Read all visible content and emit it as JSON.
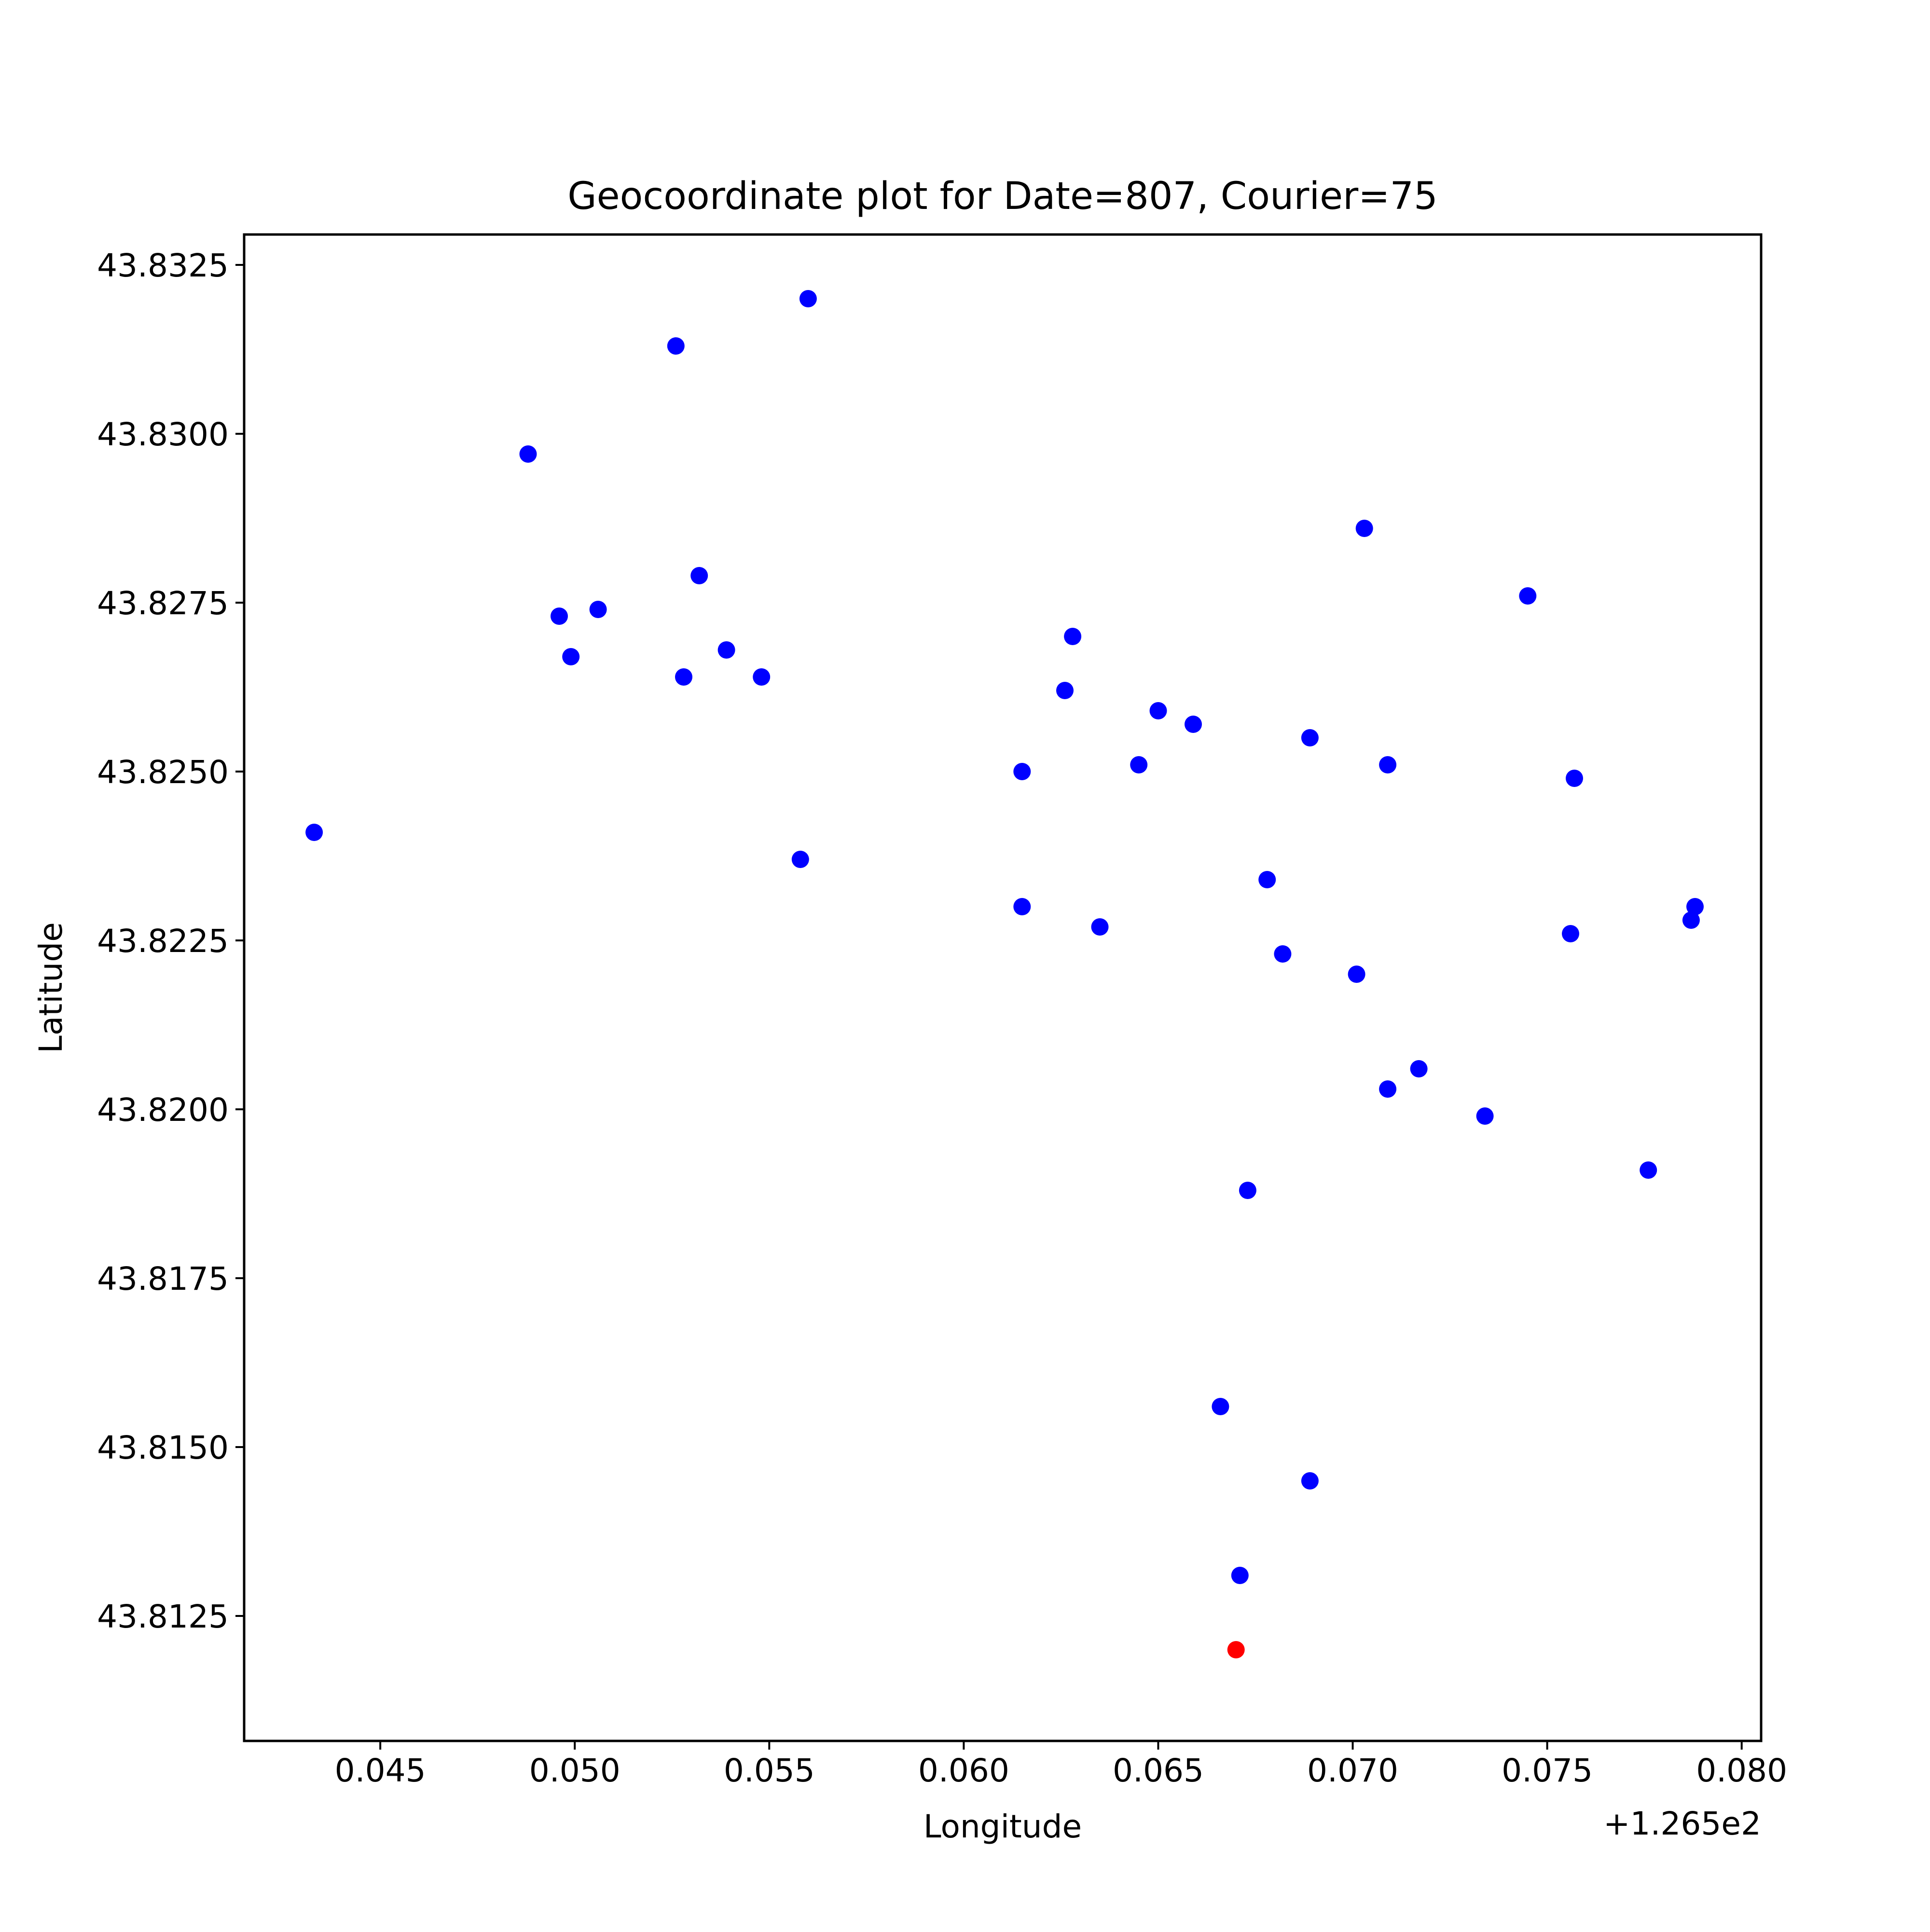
{
  "chart_data": {
    "type": "scatter",
    "title": "Geocoordinate plot for Date=807, Courier=75",
    "xlabel": "Longitude",
    "ylabel": "Latitude",
    "x_offset_label": "+1.265e2",
    "xlim": [
      126.5415,
      126.5805
    ],
    "ylim": [
      43.81065,
      43.83295
    ],
    "x_ticks": [
      {
        "value": 126.545,
        "label": "0.045"
      },
      {
        "value": 126.55,
        "label": "0.050"
      },
      {
        "value": 126.555,
        "label": "0.055"
      },
      {
        "value": 126.56,
        "label": "0.060"
      },
      {
        "value": 126.565,
        "label": "0.065"
      },
      {
        "value": 126.57,
        "label": "0.070"
      },
      {
        "value": 126.575,
        "label": "0.075"
      },
      {
        "value": 126.58,
        "label": "0.080"
      }
    ],
    "y_ticks": [
      {
        "value": 43.8125,
        "label": "43.8125"
      },
      {
        "value": 43.815,
        "label": "43.8150"
      },
      {
        "value": 43.8175,
        "label": "43.8175"
      },
      {
        "value": 43.82,
        "label": "43.8200"
      },
      {
        "value": 43.8225,
        "label": "43.8225"
      },
      {
        "value": 43.825,
        "label": "43.8250"
      },
      {
        "value": 43.8275,
        "label": "43.8275"
      },
      {
        "value": 43.83,
        "label": "43.8300"
      },
      {
        "value": 43.8325,
        "label": "43.8325"
      }
    ],
    "grid": false,
    "series": [
      {
        "color": "#0000ff",
        "points": [
          [
            126.5433,
            43.8241
          ],
          [
            126.5488,
            43.8297
          ],
          [
            126.5496,
            43.8273
          ],
          [
            126.5499,
            43.8267
          ],
          [
            126.5506,
            43.8274
          ],
          [
            126.5526,
            43.8313
          ],
          [
            126.5528,
            43.8264
          ],
          [
            126.5532,
            43.8279
          ],
          [
            126.5539,
            43.8268
          ],
          [
            126.5548,
            43.8264
          ],
          [
            126.5558,
            43.8237
          ],
          [
            126.556,
            43.832
          ],
          [
            126.5615,
            43.825
          ],
          [
            126.5615,
            43.823
          ],
          [
            126.5626,
            43.8262
          ],
          [
            126.5628,
            43.827
          ],
          [
            126.5635,
            43.8227
          ],
          [
            126.5645,
            43.8251
          ],
          [
            126.565,
            43.8259
          ],
          [
            126.5659,
            43.8257
          ],
          [
            126.5666,
            43.8156
          ],
          [
            126.5671,
            43.8131
          ],
          [
            126.5673,
            43.8188
          ],
          [
            126.5678,
            43.8234
          ],
          [
            126.5682,
            43.8223
          ],
          [
            126.5689,
            43.8255
          ],
          [
            126.5689,
            43.8145
          ],
          [
            126.5701,
            43.822
          ],
          [
            126.5703,
            43.8286
          ],
          [
            126.5709,
            43.8203
          ],
          [
            126.5709,
            43.8251
          ],
          [
            126.5717,
            43.8206
          ],
          [
            126.5734,
            43.8199
          ],
          [
            126.5745,
            43.8276
          ],
          [
            126.5756,
            43.8226
          ],
          [
            126.5757,
            43.8249
          ],
          [
            126.5776,
            43.8191
          ],
          [
            126.5787,
            43.8228
          ],
          [
            126.5788,
            43.823
          ]
        ]
      },
      {
        "color": "#ff0000",
        "points": [
          [
            126.567,
            43.812
          ]
        ]
      }
    ]
  }
}
